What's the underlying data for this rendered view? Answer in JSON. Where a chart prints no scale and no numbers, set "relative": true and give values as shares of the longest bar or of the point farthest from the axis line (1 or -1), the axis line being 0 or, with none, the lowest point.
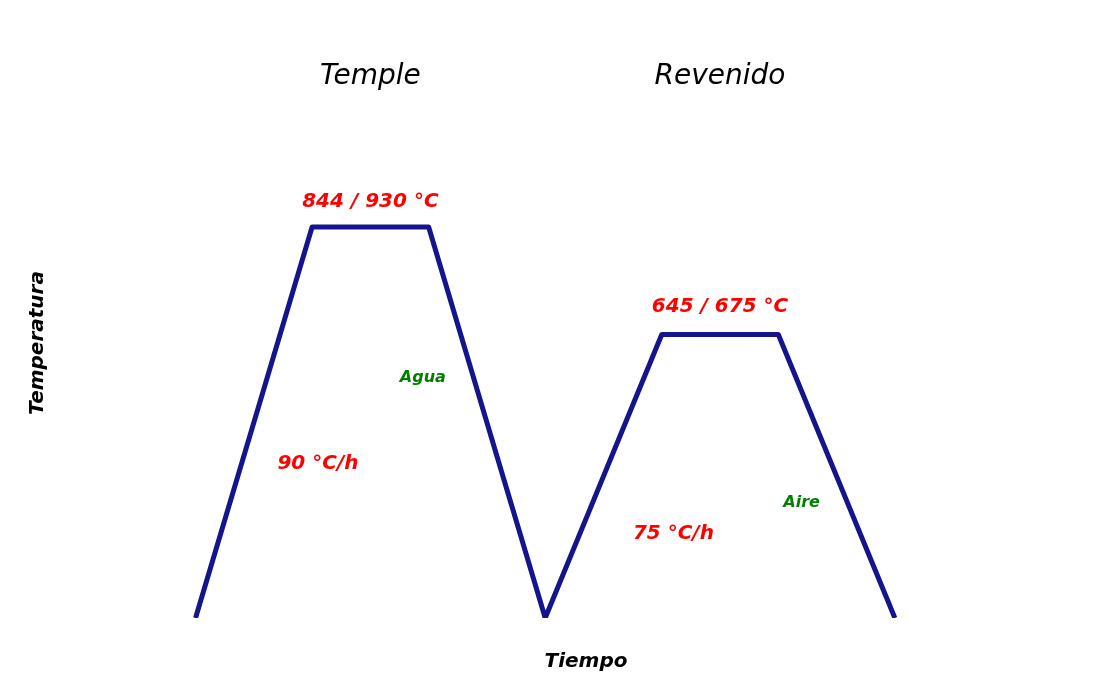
{
  "chart_data": {
    "type": "line",
    "relative": true,
    "xlabel": "Tiempo",
    "ylabel": "Temperatura",
    "categories": [
      null,
      null,
      null,
      null,
      null,
      null,
      null
    ],
    "series": [
      {
        "color": "#14148c",
        "values": [
          0,
          1,
          1,
          0,
          0.725,
          0.725,
          0
        ]
      }
    ],
    "marker": "none",
    "line_style": "solid",
    "annotations": [
      "Temple",
      "Revenido",
      "844 / 930 °C",
      "645 / 675 °C",
      "90 °C/h",
      "75 °C/h",
      "Agua",
      "Aire"
    ]
  }
}
